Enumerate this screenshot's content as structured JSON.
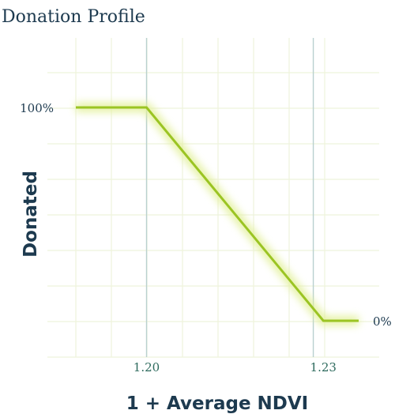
{
  "chart_data": {
    "type": "line",
    "title": "Donation Profile",
    "xlabel": "1 + Average NDVI",
    "ylabel": "Donated",
    "x_ticks": [
      {
        "value": 1.2,
        "label": "1.20"
      },
      {
        "value": 1.23,
        "label": "1.23"
      }
    ],
    "y_ticks": [
      {
        "value": 100,
        "label": "100%"
      },
      {
        "value": 0,
        "label": "0%"
      }
    ],
    "xlim": [
      1.188,
      1.236
    ],
    "ylim": [
      0,
      100
    ],
    "reference_lines_x": [
      1.2,
      1.2283
    ],
    "series": [
      {
        "points": [
          {
            "x": 1.188,
            "y": 100
          },
          {
            "x": 1.2,
            "y": 100
          },
          {
            "x": 1.23,
            "y": 0
          },
          {
            "x": 1.236,
            "y": 0
          }
        ]
      }
    ],
    "grid": true,
    "colors": {
      "line": "#9bc423",
      "glow": "#e2f09a",
      "grid": "#eef3dc",
      "reference": "#b9d0cf",
      "text": "#1d3a4f",
      "tick_x": "#2e6b5e"
    }
  }
}
